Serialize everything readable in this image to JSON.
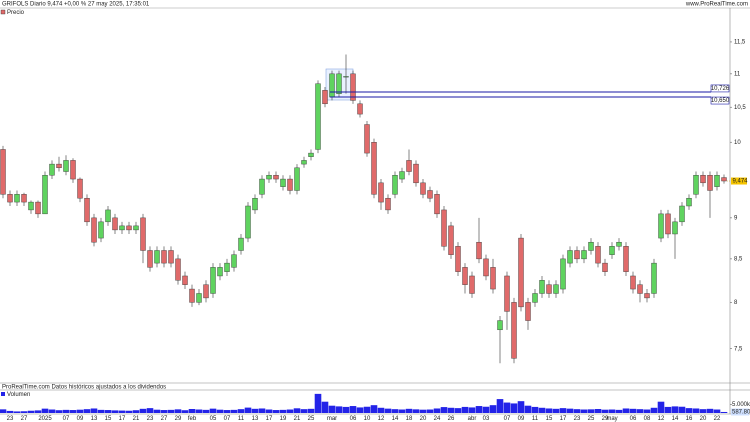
{
  "header": {
    "left": "GRIFOLS Diario 9,474 +0,00 % 27 may 2025, 17:35:01",
    "right": "www.ProRealTime.com"
  },
  "footer": "ProRealTime.com  Datos históricos ajustados a los dividendos",
  "chart_data": {
    "type": "candlestick",
    "series_name": "Precio",
    "log_scale": true,
    "grid": false,
    "up_color": "#5fd35f",
    "down_color": "#e06a6a",
    "categories": [
      null,
      "23",
      null,
      "27",
      null,
      null,
      "2025",
      null,
      null,
      "07",
      null,
      "09",
      null,
      "13",
      null,
      "15",
      null,
      "17",
      null,
      "21",
      null,
      "23",
      null,
      "27",
      null,
      "29",
      null,
      "feb",
      null,
      null,
      "05",
      null,
      "07",
      null,
      "11",
      null,
      "13",
      null,
      "17",
      null,
      "19",
      null,
      "21",
      null,
      "25",
      null,
      null,
      "mar",
      null,
      null,
      "06",
      null,
      "10",
      null,
      "12",
      null,
      "14",
      null,
      "18",
      null,
      "20",
      null,
      "24",
      null,
      "26",
      null,
      null,
      "abr",
      null,
      "03",
      null,
      null,
      "07",
      null,
      "09",
      null,
      "11",
      null,
      "15",
      null,
      "17",
      null,
      "23",
      null,
      "25",
      null,
      "29",
      "may",
      null,
      null,
      "06",
      null,
      "08",
      null,
      "12",
      null,
      "14",
      null,
      "16",
      null,
      "20",
      null,
      "22",
      null
    ],
    "open": [
      9.9,
      9.3,
      9.2,
      9.3,
      9.1,
      9.2,
      9.05,
      9.55,
      9.7,
      9.6,
      9.75,
      9.5,
      9.25,
      9.0,
      8.75,
      8.95,
      9.0,
      8.85,
      8.9,
      8.85,
      9.0,
      8.6,
      8.45,
      8.6,
      8.6,
      8.5,
      8.3,
      8.15,
      8.0,
      8.2,
      8.1,
      8.3,
      8.35,
      8.4,
      8.6,
      8.75,
      9.1,
      9.3,
      9.5,
      9.55,
      9.4,
      9.5,
      9.35,
      9.7,
      9.8,
      9.9,
      10.75,
      10.65,
      10.7,
      10.95,
      11.0,
      10.55,
      10.25,
      10.0,
      9.45,
      9.25,
      9.3,
      9.5,
      9.75,
      9.7,
      9.45,
      9.35,
      9.3,
      9.1,
      8.9,
      8.65,
      8.4,
      8.3,
      8.7,
      8.5,
      8.4,
      7.7,
      8.3,
      8.0,
      8.75,
      8.0,
      8.0,
      8.1,
      8.2,
      8.1,
      8.15,
      8.45,
      8.6,
      8.5,
      8.6,
      8.65,
      8.45,
      8.55,
      8.65,
      8.65,
      8.3,
      8.2,
      8.1,
      8.1,
      8.75,
      9.05,
      8.8,
      8.95,
      9.15,
      9.3,
      9.55,
      9.55,
      9.4,
      9.52
    ],
    "high": [
      9.95,
      9.35,
      9.35,
      9.32,
      9.22,
      9.22,
      9.6,
      9.75,
      9.8,
      9.82,
      9.78,
      9.52,
      9.3,
      9.05,
      9.0,
      9.15,
      9.05,
      8.95,
      8.95,
      8.95,
      9.05,
      8.65,
      8.65,
      8.65,
      8.65,
      8.55,
      8.35,
      8.2,
      8.15,
      8.25,
      8.45,
      8.45,
      8.5,
      8.6,
      8.8,
      9.2,
      9.3,
      9.55,
      9.6,
      9.6,
      9.55,
      9.55,
      9.7,
      9.8,
      9.9,
      10.9,
      10.8,
      11.05,
      11.05,
      11.3,
      11.05,
      10.6,
      10.3,
      10.05,
      9.5,
      9.3,
      9.6,
      9.65,
      9.9,
      9.75,
      9.5,
      9.4,
      9.35,
      9.15,
      8.95,
      8.7,
      8.45,
      8.35,
      9.0,
      8.55,
      8.5,
      7.85,
      8.35,
      8.05,
      8.8,
      8.05,
      8.15,
      8.3,
      8.25,
      8.25,
      8.55,
      8.65,
      8.65,
      8.65,
      8.75,
      8.7,
      8.5,
      8.7,
      8.75,
      8.7,
      8.35,
      8.25,
      8.15,
      8.5,
      9.1,
      9.1,
      9.0,
      9.2,
      9.3,
      9.6,
      9.6,
      9.6,
      9.6,
      9.56
    ],
    "low": [
      9.25,
      9.15,
      9.15,
      9.15,
      9.05,
      9.0,
      9.05,
      9.5,
      9.6,
      9.55,
      9.45,
      9.2,
      8.9,
      8.65,
      8.7,
      8.9,
      8.8,
      8.8,
      8.8,
      8.8,
      8.45,
      8.35,
      8.4,
      8.4,
      8.4,
      8.2,
      8.15,
      7.95,
      7.97,
      8.0,
      8.05,
      8.25,
      8.3,
      8.35,
      8.55,
      8.7,
      9.05,
      9.25,
      9.45,
      9.45,
      9.35,
      9.3,
      9.3,
      9.65,
      9.75,
      9.85,
      10.5,
      10.6,
      10.65,
      10.7,
      10.55,
      10.35,
      9.8,
      9.25,
      9.1,
      9.05,
      9.25,
      9.45,
      9.55,
      9.4,
      9.25,
      9.2,
      9.0,
      8.6,
      8.5,
      8.3,
      8.1,
      8.05,
      8.45,
      8.25,
      8.1,
      7.35,
      7.7,
      7.35,
      7.9,
      7.7,
      7.95,
      8.05,
      8.05,
      8.05,
      8.1,
      8.4,
      8.45,
      8.45,
      8.55,
      8.4,
      8.3,
      8.5,
      8.6,
      8.3,
      8.1,
      8.0,
      8.0,
      8.05,
      8.7,
      8.75,
      8.5,
      8.9,
      9.1,
      9.25,
      9.4,
      9.0,
      9.35,
      9.44
    ],
    "close": [
      9.3,
      9.2,
      9.3,
      9.2,
      9.2,
      9.05,
      9.55,
      9.7,
      9.65,
      9.75,
      9.5,
      9.25,
      8.95,
      8.7,
      8.95,
      9.1,
      8.85,
      8.9,
      8.85,
      8.9,
      8.6,
      8.4,
      8.6,
      8.45,
      8.45,
      8.25,
      8.2,
      8.0,
      8.1,
      8.05,
      8.4,
      8.4,
      8.45,
      8.55,
      8.75,
      9.15,
      9.25,
      9.5,
      9.55,
      9.5,
      9.5,
      9.35,
      9.65,
      9.75,
      9.85,
      10.85,
      10.55,
      11.0,
      11.0,
      10.96,
      10.6,
      10.4,
      9.85,
      9.3,
      9.2,
      9.1,
      9.55,
      9.6,
      9.6,
      9.45,
      9.3,
      9.25,
      9.05,
      8.65,
      8.55,
      8.35,
      8.2,
      8.1,
      8.5,
      8.3,
      8.15,
      7.8,
      7.9,
      7.4,
      7.95,
      7.8,
      8.1,
      8.25,
      8.1,
      8.2,
      8.5,
      8.6,
      8.5,
      8.6,
      8.7,
      8.45,
      8.35,
      8.65,
      8.7,
      8.35,
      8.15,
      8.1,
      8.05,
      8.45,
      9.05,
      8.8,
      8.95,
      9.15,
      9.25,
      9.55,
      9.45,
      9.35,
      9.55,
      9.474
    ],
    "ylim": [
      7.16,
      11.89
    ],
    "yticks": [
      {
        "value": 11.5,
        "label": "11,5"
      },
      11,
      {
        "value": 10.5,
        "label": "10,5"
      },
      10,
      9,
      {
        "value": 8.5,
        "label": "8,5"
      },
      8,
      {
        "value": 7.5,
        "label": "7,5"
      }
    ],
    "last_price": {
      "value": 9.474,
      "label": "9,474"
    },
    "levels": [
      {
        "value": 10.726,
        "label": "10,726"
      },
      {
        "value": 10.65,
        "label": "10,650"
      }
    ],
    "level_color": "#1a1aa6",
    "volume": {
      "name": "Volumen",
      "color": "#2323e8",
      "values": [
        2100000,
        1200000,
        900000,
        1000000,
        1300000,
        1500000,
        2500000,
        2000000,
        1600000,
        1800000,
        1700000,
        1900000,
        2200000,
        2600000,
        1800000,
        1700000,
        1500000,
        1400000,
        1300000,
        1600000,
        2400000,
        2800000,
        1900000,
        1700000,
        1800000,
        2100000,
        1600000,
        2300000,
        2000000,
        1800000,
        2500000,
        1900000,
        1700000,
        1800000,
        2200000,
        3100000,
        2400000,
        2600000,
        2000000,
        1700000,
        1800000,
        2000000,
        2700000,
        2200000,
        2400000,
        11000000,
        6500000,
        4200000,
        3800000,
        3500000,
        4000000,
        3200000,
        3600000,
        4500000,
        3000000,
        2500000,
        2200000,
        2000000,
        2400000,
        2100000,
        1900000,
        2000000,
        2600000,
        3400000,
        3000000,
        2800000,
        3500000,
        3200000,
        4000000,
        3600000,
        4500000,
        8000000,
        6000000,
        5500000,
        6800000,
        4200000,
        3500000,
        3000000,
        2600000,
        2400000,
        2800000,
        2500000,
        2200000,
        2000000,
        2100000,
        2300000,
        1900000,
        2000000,
        1800000,
        2600000,
        2400000,
        2200000,
        2000000,
        3000000,
        6500000,
        3500000,
        3800000,
        3600000,
        2800000,
        2600000,
        2200000,
        2400000,
        2000000,
        587807
      ],
      "ylim": [
        0,
        11500000
      ],
      "yticks": [
        {
          "value": 5000000,
          "label": "5.000k"
        }
      ],
      "last_label": {
        "value": 587807,
        "label": "587.807"
      }
    }
  }
}
